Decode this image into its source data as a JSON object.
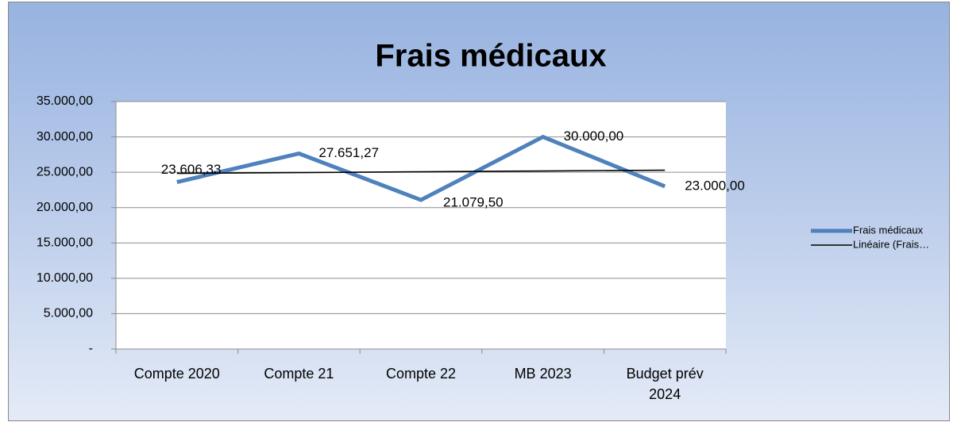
{
  "chart_data": {
    "type": "line",
    "title": "Frais médicaux",
    "categories": [
      "Compte 2020",
      "Compte 21",
      "Compte 22",
      "MB 2023",
      "Budget prév 2024"
    ],
    "series": [
      {
        "name": "Frais médicaux",
        "color": "#4f81bd",
        "values": [
          23606.33,
          27651.27,
          21079.5,
          30000,
          23000
        ],
        "value_labels": [
          "23.606,33",
          "27.651,27",
          "21.079,50",
          "30.000,00",
          "23.000,00"
        ]
      },
      {
        "name": "Linéaire (Frais…",
        "color": "#000000",
        "values": [
          24840.2,
          24953.8,
          25067.4,
          25181.0,
          25294.6
        ]
      }
    ],
    "ylim": [
      0,
      35000
    ],
    "yticks": [
      {
        "value": 0,
        "label": "-"
      },
      {
        "value": 5000,
        "label": "5.000,00"
      },
      {
        "value": 10000,
        "label": "10.000,00"
      },
      {
        "value": 15000,
        "label": "15.000,00"
      },
      {
        "value": 20000,
        "label": "20.000,00"
      },
      {
        "value": 25000,
        "label": "25.000,00"
      },
      {
        "value": 30000,
        "label": "30.000,00"
      },
      {
        "value": 35000,
        "label": "35.000,00"
      }
    ],
    "grid": true,
    "legend": "right"
  }
}
